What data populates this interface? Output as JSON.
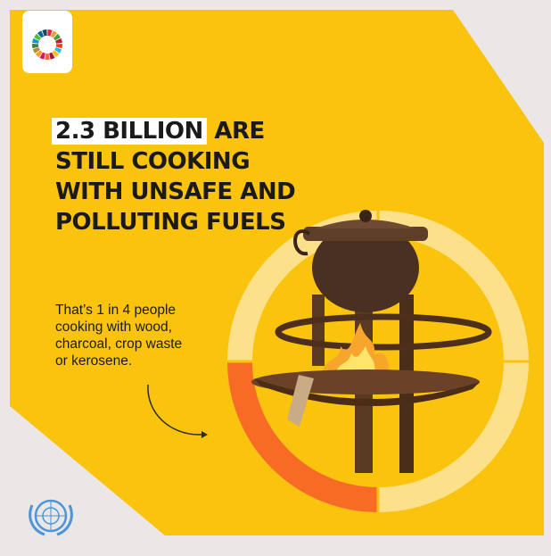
{
  "headline": {
    "highlight": "2.3 BILLION",
    "line1_rest": " ARE",
    "line2": "STILL COOKING",
    "line3": "WITH UNSAFE AND",
    "line4": "POLLUTING FUELS"
  },
  "subtext": {
    "line1": "That’s 1 in 4 people",
    "line2": "cooking with wood,",
    "line3": "charcoal, crop waste",
    "line4": "or kerosene."
  },
  "ring": {
    "highlighted_share": 0.25,
    "colors": {
      "highlight": "#f76b25",
      "rest": "#fde08a"
    }
  },
  "colors": {
    "background": "#f9c30e",
    "page": "#ebe7e6",
    "text": "#1a1a1a"
  },
  "icons": {
    "logo": "sdg-wheel-logo",
    "emblem": "un-emblem",
    "arrow": "curved-arrow"
  }
}
